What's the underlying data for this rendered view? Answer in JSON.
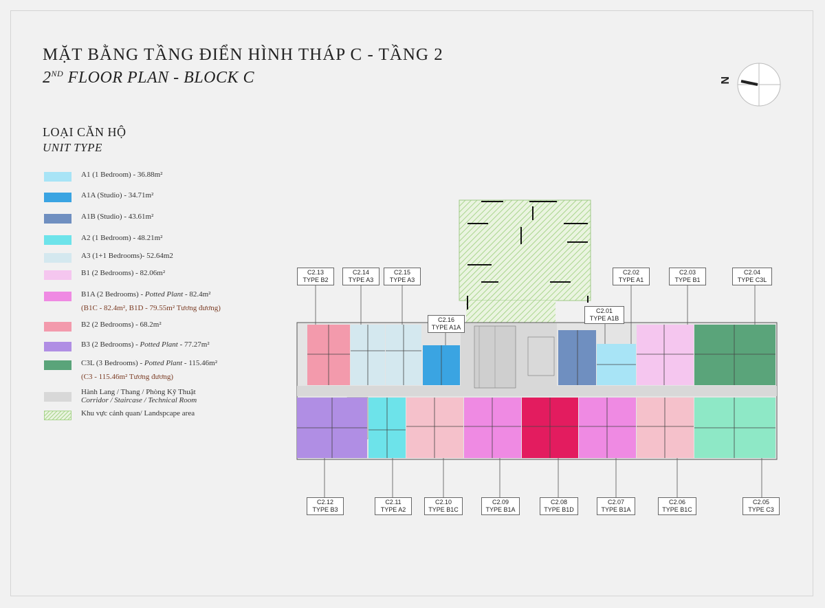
{
  "title": "MẶT BẰNG TẦNG ĐIỂN HÌNH THÁP C - TẦNG 2",
  "subtitle": {
    "prefix": "2",
    "sup": "ND",
    "rest": " FLOOR PLAN - BLOCK C"
  },
  "legend_title": "LOẠI CĂN HỘ",
  "legend_subtitle": "UNIT TYPE",
  "compass_letter": "N",
  "colors": {
    "A1": "#a8e4f6",
    "A1A": "#3aa4e2",
    "A1B": "#6f8fc0",
    "A2": "#6de3ea",
    "A3": "#d4e8ef",
    "B1": "#f5c6ef",
    "B1A": "#ef8ae3",
    "B1D": "#e31c5f",
    "B2": "#f39aac",
    "B3": "#b08ee4",
    "C3L": "#5aa47a",
    "C3": "#8ee8c6",
    "corridor": "#d8d8d8",
    "landscape": "#a9d58d",
    "B1C": "#f5c1cb"
  },
  "legend": [
    {
      "label": "A1 (1 Bedroom) - 36.88m²"
    },
    {
      "label": "A1A (Studio) - 34.71m²"
    },
    {
      "label": "A1B (Studio) - 43.61m²"
    },
    {
      "label": "A2 (1 Bedroom) - 48.21m²"
    },
    {
      "label": "A3 (1+1 Bedrooms)- 52.64m2"
    },
    {
      "label": "B1 (2 Bedrooms) - 82.06m²"
    },
    {
      "label_a": "B1A (2 Bedrooms) - ",
      "label_b": "Potted Plant",
      "label_c": " - 82.4m²",
      "note": "(B1C - 82.4m², B1D - 79.55m² Tương đương)"
    },
    {
      "label": "B2 (2 Bedrooms) - 68.2m²"
    },
    {
      "label_a": "B3 (2 Bedrooms) - ",
      "label_b": "Potted Plant",
      "label_c": " - 77.27m²"
    },
    {
      "label_a": "C3L (3 Bedrooms) - ",
      "label_b": "Potted Plant",
      "label_c": " - 115.46m²",
      "note": "(C3 - 115.46m² Tương đương)"
    },
    {
      "label": "Hành Lang / Thang / Phòng Kỹ Thuật",
      "label2": "Corridor / Staircase / Technical Room"
    },
    {
      "label": "Khu vực cảnh quan/ Landspcape area"
    }
  ],
  "units": [
    {
      "code": "C2.13",
      "type": "TYPE B2"
    },
    {
      "code": "C2.14",
      "type": "TYPE A3"
    },
    {
      "code": "C2.15",
      "type": "TYPE A3"
    },
    {
      "code": "C2.16",
      "type": "TYPE A1A"
    },
    {
      "code": "C2.01",
      "type": "TYPE A1B"
    },
    {
      "code": "C2.02",
      "type": "TYPE A1"
    },
    {
      "code": "C2.03",
      "type": "TYPE B1"
    },
    {
      "code": "C2.04",
      "type": "TYPE C3L"
    },
    {
      "code": "C2.12",
      "type": "TYPE B3"
    },
    {
      "code": "C2.11",
      "type": "TYPE A2"
    },
    {
      "code": "C2.10",
      "type": "TYPE B1C"
    },
    {
      "code": "C2.09",
      "type": "TYPE B1A"
    },
    {
      "code": "C2.08",
      "type": "TYPE B1D"
    },
    {
      "code": "C2.07",
      "type": "TYPE B1A"
    },
    {
      "code": "C2.06",
      "type": "TYPE B1C"
    },
    {
      "code": "C2.05",
      "type": "TYPE C3"
    }
  ]
}
